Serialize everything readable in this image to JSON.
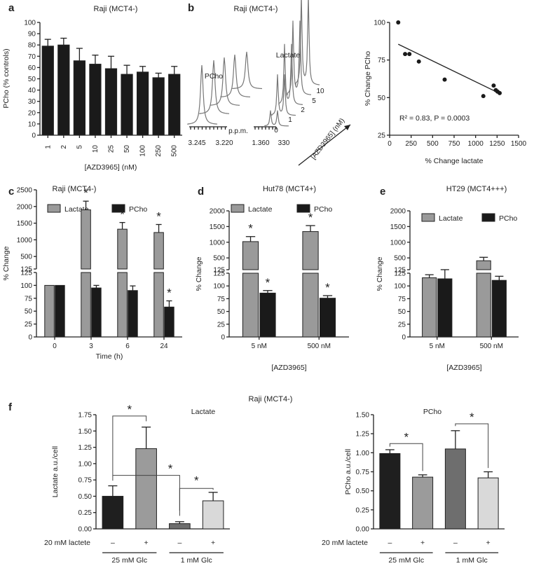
{
  "chart_data": [
    {
      "id": "a",
      "type": "bar",
      "panel_label": "a",
      "title": "Raji (MCT4-)",
      "xlabel": "[AZD3965] (nM)",
      "ylabel": "PCho (% controls)",
      "ylim": [
        0,
        100
      ],
      "yticks": [
        0,
        10,
        20,
        30,
        40,
        50,
        60,
        70,
        80,
        90,
        100
      ],
      "categories": [
        "1",
        "2",
        "5",
        "10",
        "25",
        "50",
        "100",
        "250",
        "500"
      ],
      "series": [
        {
          "name": "PCho",
          "color": "#1a1a1a",
          "values": [
            79,
            80,
            66,
            63,
            59,
            54,
            56,
            51,
            54
          ],
          "errors": [
            6,
            6,
            11,
            8,
            11,
            8,
            5,
            4,
            7
          ]
        }
      ]
    },
    {
      "id": "b_spectra",
      "type": "line",
      "panel_label": "b",
      "title": "Raji (MCT4-)",
      "labels": {
        "pcho": "PCho",
        "lactate": "Lactate",
        "ppm": "p.p.m.",
        "axis_arrow": "[AZD3965] (nM)"
      },
      "pcho_ticks": [
        "3.245",
        "3.220"
      ],
      "lac_ticks": [
        "1.360",
        "330"
      ],
      "concentrations": [
        "0",
        "1",
        "2",
        "5",
        "10"
      ]
    },
    {
      "id": "b_scatter",
      "type": "scatter",
      "xlabel": "% Change lactate",
      "ylabel": "% Change PCho",
      "xlim": [
        0,
        1500
      ],
      "ylim": [
        25,
        100
      ],
      "xticks": [
        0,
        250,
        500,
        750,
        1000,
        1250,
        1500
      ],
      "yticks": [
        25,
        50,
        75,
        100
      ],
      "x": [
        100,
        180,
        230,
        340,
        640,
        1090,
        1210,
        1235,
        1255,
        1280
      ],
      "y": [
        100,
        79,
        79,
        74,
        62,
        51,
        58,
        55,
        54,
        53
      ],
      "fit": {
        "x": [
          100,
          1290
        ],
        "y": [
          85.5,
          52.5
        ]
      },
      "annotation": "R² = 0.83, P = 0.0003"
    },
    {
      "id": "c",
      "type": "bar",
      "panel_label": "c",
      "title": "Raji (MCT4-)",
      "xlabel": "Time (h)",
      "ylabel": "% Change",
      "categories": [
        "0",
        "3",
        "6",
        "24"
      ],
      "upper_ticks": [
        125,
        500,
        1000,
        1500,
        2000,
        2500
      ],
      "lower_ticks": [
        0,
        25,
        50,
        75,
        100,
        125
      ],
      "series": [
        {
          "name": "Lactate",
          "color": "#9a9a9a",
          "values": [
            100,
            1900,
            1320,
            1220
          ],
          "errors": [
            0,
            260,
            200,
            240
          ]
        },
        {
          "name": "PCho",
          "color": "#1a1a1a",
          "values": [
            100,
            95,
            90,
            58
          ],
          "errors": [
            0,
            5,
            9,
            12
          ]
        }
      ],
      "stars": [
        [
          false,
          true
        ],
        [
          false,
          false
        ],
        [
          false,
          true
        ],
        [
          false,
          false
        ],
        [
          false,
          true
        ],
        [
          false,
          true
        ]
      ]
    },
    {
      "id": "d",
      "type": "bar",
      "panel_label": "d",
      "title": "Hut78 (MCT4+)",
      "xlabel": "[AZD3965]",
      "ylabel": "% Change",
      "categories": [
        "5 nM",
        "500 nM"
      ],
      "upper_ticks": [
        125,
        500,
        1000,
        1500,
        2000
      ],
      "lower_ticks": [
        0,
        25,
        50,
        75,
        100,
        125
      ],
      "series": [
        {
          "name": "Lactate",
          "color": "#9a9a9a",
          "values": [
            1020,
            1340
          ],
          "errors": [
            160,
            190
          ]
        },
        {
          "name": "PCho",
          "color": "#1a1a1a",
          "values": [
            86,
            76
          ],
          "errors": [
            5,
            5
          ]
        }
      ],
      "stars": [
        [
          true,
          true
        ],
        [
          true,
          true
        ]
      ]
    },
    {
      "id": "e",
      "type": "bar",
      "panel_label": "e",
      "title": "HT29 (MCT4+++)",
      "xlabel": "[AZD3965]",
      "ylabel": "% Change",
      "categories": [
        "5 nM",
        "500 nM"
      ],
      "upper_ticks": [
        125,
        500,
        1000,
        1500,
        2000
      ],
      "lower_ticks": [
        0,
        25,
        50,
        75,
        100,
        125
      ],
      "series": [
        {
          "name": "Lactate",
          "color": "#9a9a9a",
          "values": [
            116,
            410
          ],
          "errors": [
            6,
            110
          ]
        },
        {
          "name": "PCho",
          "color": "#1a1a1a",
          "values": [
            114,
            111
          ],
          "errors": [
            12,
            8
          ]
        }
      ],
      "stars": [
        [
          false,
          false
        ],
        [
          false,
          false
        ]
      ]
    },
    {
      "id": "f_lac",
      "type": "bar",
      "panel_label": "f",
      "title": "Lactate",
      "figure_title": "Raji (MCT4-)",
      "ylabel": "Lactate a.u./cell",
      "ylim": [
        0,
        1.75
      ],
      "yticks": [
        "0.00",
        "0.25",
        "0.50",
        "0.75",
        "1.00",
        "1.25",
        "1.50",
        "1.75"
      ],
      "row_label": "20 mM lactete",
      "signs": [
        "–",
        "+",
        "–",
        "+"
      ],
      "groups": [
        "25 mM Glc",
        "1 mM Glc"
      ],
      "categories": [
        "25 mM Glc –",
        "25 mM Glc +",
        "1 mM Glc –",
        "1 mM Glc +"
      ],
      "values": [
        0.5,
        1.23,
        0.08,
        0.43
      ],
      "errors": [
        0.16,
        0.33,
        0.03,
        0.13
      ],
      "colors": [
        "#1f1f1f",
        "#9b9b9b",
        "#6e6e6e",
        "#d9d9d9"
      ]
    },
    {
      "id": "f_pcho",
      "type": "bar",
      "title": "PCho",
      "ylabel": "PCho a.u./cell",
      "ylim": [
        0,
        1.5
      ],
      "yticks": [
        "0.00",
        "0.25",
        "0.50",
        "0.75",
        "1.00",
        "1.25",
        "1.50"
      ],
      "row_label": "20 mM lactete",
      "signs": [
        "–",
        "+",
        "–",
        "+"
      ],
      "groups": [
        "25 mM Glc",
        "1 mM Glc"
      ],
      "categories": [
        "25 mM Glc –",
        "25 mM Glc +",
        "1 mM Glc –",
        "1 mM Glc +"
      ],
      "values": [
        0.99,
        0.68,
        1.05,
        0.67
      ],
      "errors": [
        0.05,
        0.03,
        0.24,
        0.08
      ],
      "colors": [
        "#1f1f1f",
        "#9b9b9b",
        "#6e6e6e",
        "#d9d9d9"
      ]
    }
  ]
}
